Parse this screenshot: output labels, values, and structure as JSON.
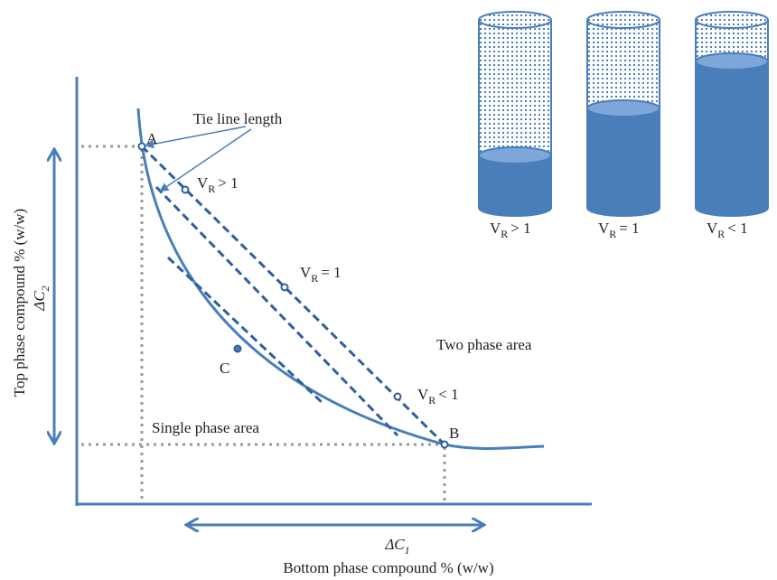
{
  "labels": {
    "tie_line": "Tie line length",
    "point_a": "A",
    "point_b": "B",
    "point_c": "C",
    "two_phase": "Two phase area",
    "single_phase": "Single phase area",
    "y_axis": "Top phase compound % (w/w)",
    "x_axis": "Bottom phase compound % (w/w)",
    "delta_c2": {
      "main": "ΔC",
      "sub": "2"
    },
    "delta_c1": {
      "main": "ΔC",
      "sub": "1"
    },
    "vr_gt": {
      "main": "V",
      "sub": "R",
      "rest": "> 1"
    },
    "vr_eq": {
      "main": "V",
      "sub": "R",
      "rest": "= 1"
    },
    "vr_lt": {
      "main": "V",
      "sub": "R",
      "rest": "< 1"
    }
  },
  "cylinders": [
    {
      "main": "V",
      "sub": "R",
      "rest": "> 1"
    },
    {
      "main": "V",
      "sub": "R",
      "rest": "= 1"
    },
    {
      "main": "V",
      "sub": "R",
      "rest": "< 1"
    }
  ]
}
